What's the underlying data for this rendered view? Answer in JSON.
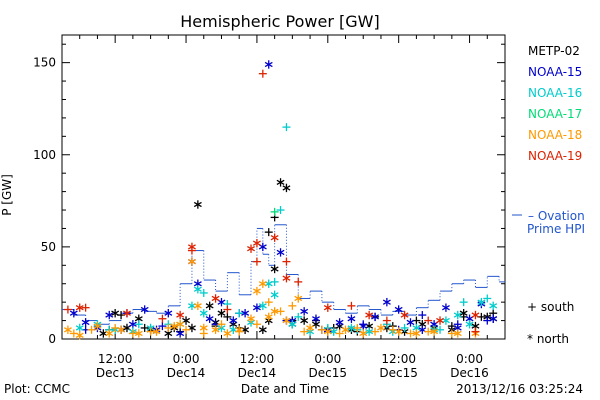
{
  "chart_data": {
    "type": "scatter",
    "title": "Hemispheric Power [GW]",
    "ylabel": "P [GW]",
    "xlabel": "Date and Time",
    "ylim": [
      0,
      165
    ],
    "xlim_hours": [
      0,
      75
    ],
    "yticks": [
      0,
      50,
      100,
      150
    ],
    "xticks": [
      {
        "h": 9,
        "top": "12:00",
        "bottom": "Dec13"
      },
      {
        "h": 21,
        "top": "0:00",
        "bottom": "Dec14"
      },
      {
        "h": 33,
        "top": "12:00",
        "bottom": "Dec14"
      },
      {
        "h": 45,
        "top": "0:00",
        "bottom": "Dec15"
      },
      {
        "h": 57,
        "top": "12:00",
        "bottom": "Dec15"
      },
      {
        "h": 69,
        "top": "0:00",
        "bottom": "Dec16"
      }
    ],
    "legend_position": "right",
    "series": [
      {
        "name": "METP-02",
        "color": "#000000",
        "south": [
          [
            8,
            5
          ],
          [
            10,
            13
          ],
          [
            14,
            6
          ],
          [
            20,
            4
          ],
          [
            26,
            7
          ],
          [
            28,
            12
          ],
          [
            30,
            6
          ],
          [
            35,
            58
          ],
          [
            36,
            66
          ],
          [
            39,
            10
          ],
          [
            43,
            10
          ],
          [
            46,
            6
          ],
          [
            50,
            4
          ],
          [
            53,
            12
          ],
          [
            56,
            7
          ],
          [
            60,
            10
          ],
          [
            66,
            7
          ],
          [
            68,
            12
          ],
          [
            71,
            12
          ],
          [
            73,
            14
          ]
        ],
        "north": [
          [
            7,
            3
          ],
          [
            9,
            14
          ],
          [
            11,
            6
          ],
          [
            13,
            11
          ],
          [
            15,
            5
          ],
          [
            18,
            3
          ],
          [
            19,
            6
          ],
          [
            21,
            10
          ],
          [
            22,
            6
          ],
          [
            23,
            73
          ],
          [
            25,
            18
          ],
          [
            26,
            9
          ],
          [
            27,
            14
          ],
          [
            29,
            8
          ],
          [
            31,
            5
          ],
          [
            34,
            5
          ],
          [
            35,
            10
          ],
          [
            36,
            38
          ],
          [
            37,
            85
          ],
          [
            38,
            82
          ],
          [
            39,
            8
          ],
          [
            41,
            10
          ],
          [
            43,
            8
          ],
          [
            45,
            5
          ],
          [
            47,
            7
          ],
          [
            49,
            5
          ],
          [
            52,
            7
          ],
          [
            55,
            6
          ],
          [
            58,
            4
          ],
          [
            61,
            8
          ],
          [
            63,
            6
          ],
          [
            66,
            5
          ],
          [
            68,
            14
          ],
          [
            70,
            7
          ],
          [
            72,
            12
          ],
          [
            73,
            11
          ]
        ]
      },
      {
        "name": "NOAA-15",
        "color": "#0000cc",
        "south": [
          [
            4,
            5
          ],
          [
            11,
            14
          ],
          [
            17,
            7
          ],
          [
            26,
            8
          ],
          [
            30,
            14
          ],
          [
            38,
            10
          ],
          [
            44,
            5
          ],
          [
            51,
            8
          ],
          [
            57,
            5
          ],
          [
            61,
            13
          ],
          [
            67,
            8
          ],
          [
            72,
            10
          ]
        ],
        "north": [
          [
            2,
            14
          ],
          [
            4,
            9
          ],
          [
            6,
            6
          ],
          [
            8,
            13
          ],
          [
            10,
            5
          ],
          [
            12,
            8
          ],
          [
            14,
            16
          ],
          [
            16,
            5
          ],
          [
            18,
            14
          ],
          [
            20,
            3
          ],
          [
            22,
            42
          ],
          [
            23,
            30
          ],
          [
            25,
            11
          ],
          [
            27,
            20
          ],
          [
            29,
            10
          ],
          [
            31,
            14
          ],
          [
            33,
            17
          ],
          [
            34,
            50
          ],
          [
            35,
            149
          ],
          [
            37,
            47
          ],
          [
            39,
            10
          ],
          [
            41,
            15
          ],
          [
            43,
            11
          ],
          [
            45,
            5
          ],
          [
            47,
            9
          ],
          [
            49,
            11
          ],
          [
            51,
            7
          ],
          [
            53,
            12
          ],
          [
            55,
            20
          ],
          [
            57,
            16
          ],
          [
            59,
            9
          ],
          [
            61,
            5
          ],
          [
            63,
            8
          ],
          [
            65,
            17
          ],
          [
            67,
            6
          ],
          [
            69,
            11
          ],
          [
            71,
            19
          ],
          [
            73,
            11
          ]
        ]
      },
      {
        "name": "NOAA-16",
        "color": "#00cccc",
        "south": [
          [
            8,
            5
          ],
          [
            13,
            8
          ],
          [
            18,
            8
          ],
          [
            24,
            25
          ],
          [
            28,
            19
          ],
          [
            30,
            14
          ],
          [
            36,
            31
          ],
          [
            37,
            70
          ],
          [
            38,
            115
          ],
          [
            40,
            12
          ],
          [
            45,
            6
          ],
          [
            50,
            5
          ],
          [
            55,
            8
          ],
          [
            58,
            6
          ],
          [
            64,
            5
          ],
          [
            68,
            20
          ],
          [
            72,
            22
          ]
        ],
        "north": [
          [
            3,
            6
          ],
          [
            6,
            8
          ],
          [
            9,
            5
          ],
          [
            12,
            4
          ],
          [
            15,
            6
          ],
          [
            20,
            8
          ],
          [
            22,
            18
          ],
          [
            23,
            27
          ],
          [
            24,
            14
          ],
          [
            27,
            6
          ],
          [
            29,
            5
          ],
          [
            32,
            9
          ],
          [
            34,
            18
          ],
          [
            35,
            30
          ],
          [
            36,
            24
          ],
          [
            39,
            8
          ],
          [
            42,
            4
          ],
          [
            46,
            4
          ],
          [
            49,
            6
          ],
          [
            52,
            4
          ],
          [
            56,
            4
          ],
          [
            60,
            6
          ],
          [
            63,
            5
          ],
          [
            65,
            10
          ],
          [
            67,
            13
          ],
          [
            69,
            8
          ],
          [
            71,
            20
          ],
          [
            73,
            18
          ]
        ]
      },
      {
        "name": "NOAA-17",
        "color": "#00dd77",
        "south": [
          [
            36,
            69
          ]
        ],
        "north": []
      },
      {
        "name": "NOAA-18",
        "color": "#ff9900",
        "south": [
          [
            2,
            3
          ],
          [
            5,
            5
          ],
          [
            9,
            6
          ],
          [
            12,
            3
          ],
          [
            15,
            4
          ],
          [
            18,
            6
          ],
          [
            21,
            5
          ],
          [
            24,
            3
          ],
          [
            27,
            8
          ],
          [
            30,
            4
          ],
          [
            33,
            8
          ],
          [
            35,
            20
          ],
          [
            37,
            15
          ],
          [
            39,
            18
          ],
          [
            41,
            4
          ],
          [
            44,
            5
          ],
          [
            47,
            3
          ],
          [
            50,
            6
          ],
          [
            53,
            4
          ],
          [
            56,
            5
          ],
          [
            59,
            3
          ],
          [
            62,
            4
          ],
          [
            66,
            3
          ],
          [
            70,
            4
          ]
        ],
        "north": [
          [
            1,
            5
          ],
          [
            3,
            2
          ],
          [
            6,
            7
          ],
          [
            8,
            3
          ],
          [
            10,
            5
          ],
          [
            13,
            3
          ],
          [
            16,
            4
          ],
          [
            19,
            7
          ],
          [
            20,
            8
          ],
          [
            22,
            42
          ],
          [
            23,
            18
          ],
          [
            24,
            6
          ],
          [
            26,
            5
          ],
          [
            28,
            3
          ],
          [
            30,
            5
          ],
          [
            32,
            11
          ],
          [
            33,
            26
          ],
          [
            34,
            30
          ],
          [
            35,
            12
          ],
          [
            36,
            15
          ],
          [
            38,
            10
          ],
          [
            40,
            22
          ],
          [
            42,
            6
          ],
          [
            45,
            4
          ],
          [
            48,
            5
          ],
          [
            51,
            3
          ],
          [
            54,
            6
          ],
          [
            57,
            4
          ],
          [
            60,
            3
          ],
          [
            63,
            4
          ],
          [
            67,
            3
          ],
          [
            70,
            3
          ]
        ]
      },
      {
        "name": "NOAA-19",
        "color": "#dd2200",
        "south": [
          [
            1,
            16
          ],
          [
            4,
            17
          ],
          [
            17,
            11
          ],
          [
            22,
            48
          ],
          [
            28,
            16
          ],
          [
            33,
            42
          ],
          [
            34,
            144
          ],
          [
            38,
            42
          ],
          [
            40,
            31
          ],
          [
            49,
            18
          ],
          [
            55,
            10
          ],
          [
            62,
            10
          ],
          [
            70,
            4
          ]
        ],
        "north": [
          [
            3,
            17
          ],
          [
            11,
            14
          ],
          [
            20,
            13
          ],
          [
            22,
            50
          ],
          [
            26,
            22
          ],
          [
            32,
            49
          ],
          [
            33,
            52
          ],
          [
            36,
            55
          ],
          [
            38,
            33
          ],
          [
            45,
            17
          ],
          [
            52,
            13
          ],
          [
            58,
            13
          ],
          [
            64,
            10
          ],
          [
            70,
            13
          ]
        ]
      }
    ],
    "ovation": {
      "name": "Ovation Prime HPI",
      "color": "#2255cc",
      "points": [
        [
          0,
          16
        ],
        [
          2,
          13
        ],
        [
          4,
          10
        ],
        [
          6,
          8
        ],
        [
          8,
          10
        ],
        [
          10,
          14
        ],
        [
          12,
          16
        ],
        [
          14,
          15
        ],
        [
          16,
          14
        ],
        [
          18,
          18
        ],
        [
          20,
          30
        ],
        [
          22,
          48
        ],
        [
          24,
          32
        ],
        [
          26,
          26
        ],
        [
          28,
          36
        ],
        [
          30,
          24
        ],
        [
          32,
          42
        ],
        [
          33,
          60
        ],
        [
          34,
          46
        ],
        [
          35,
          40
        ],
        [
          36,
          62
        ],
        [
          38,
          35
        ],
        [
          40,
          22
        ],
        [
          42,
          26
        ],
        [
          44,
          20
        ],
        [
          46,
          16
        ],
        [
          48,
          14
        ],
        [
          50,
          18
        ],
        [
          52,
          16
        ],
        [
          54,
          13
        ],
        [
          56,
          15
        ],
        [
          58,
          13
        ],
        [
          60,
          17
        ],
        [
          62,
          21
        ],
        [
          64,
          26
        ],
        [
          66,
          30
        ],
        [
          68,
          32
        ],
        [
          70,
          28
        ],
        [
          72,
          34
        ],
        [
          74,
          31
        ],
        [
          75,
          31
        ]
      ]
    },
    "markers_legend": {
      "south": "+ south",
      "north": "* north"
    }
  },
  "footer": {
    "left": "Plot: CCMC",
    "center": "Date and Time",
    "right": "2013/12/16 03:25:24"
  }
}
